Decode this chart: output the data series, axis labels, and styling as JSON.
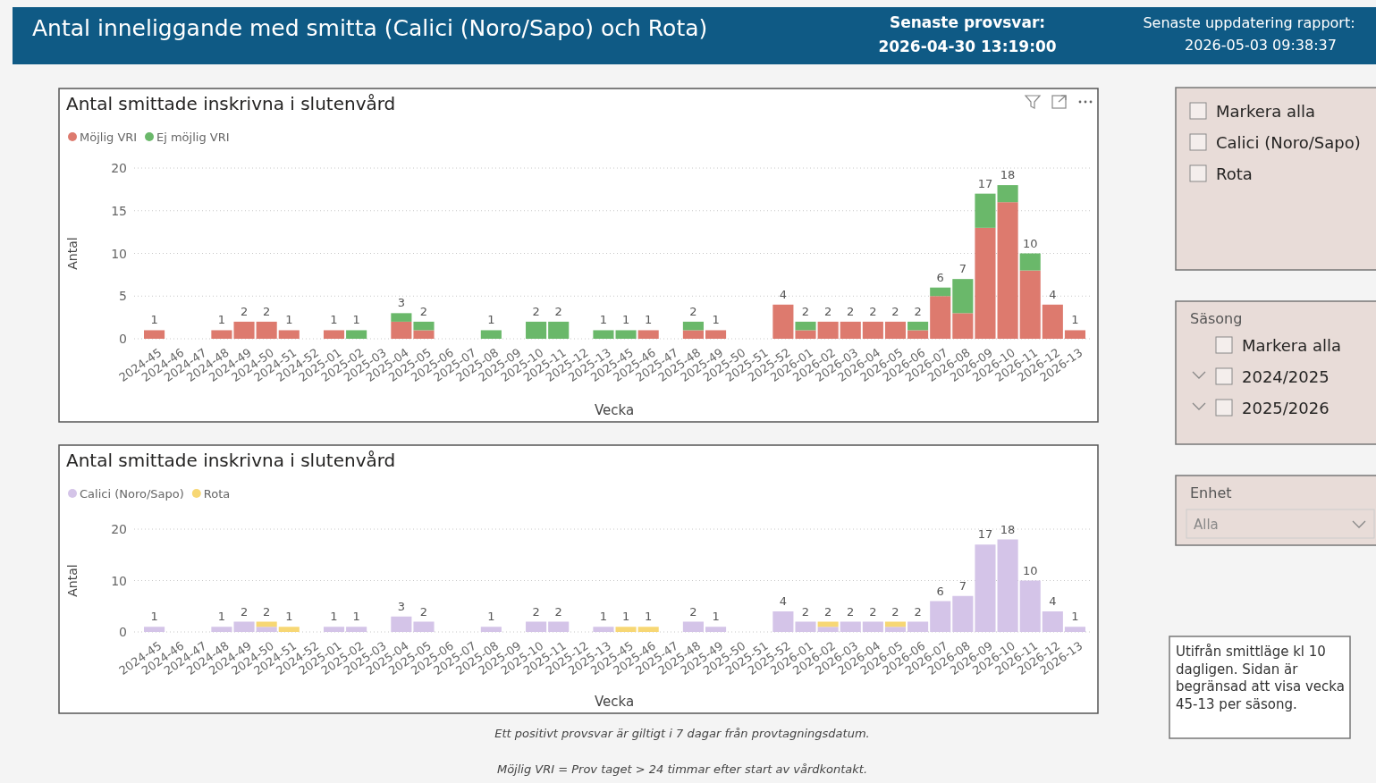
{
  "chart_data": [
    {
      "type": "bar",
      "title": "Antal smittade inskrivna i slutenvård",
      "xlabel": "Vecka",
      "ylabel": "Antal",
      "stacked": true,
      "grid": "y",
      "legend": "top left",
      "ylim": [
        0,
        20
      ],
      "yticks": [
        0,
        5,
        10,
        15,
        20
      ],
      "categories": [
        "2024-45",
        "2024-46",
        "2024-47",
        "2024-48",
        "2024-49",
        "2024-50",
        "2024-51",
        "2024-52",
        "2025-01",
        "2025-02",
        "2025-03",
        "2025-04",
        "2025-05",
        "2025-06",
        "2025-07",
        "2025-08",
        "2025-09",
        "2025-10",
        "2025-11",
        "2025-12",
        "2025-13",
        "2025-45",
        "2025-46",
        "2025-47",
        "2025-48",
        "2025-49",
        "2025-50",
        "2025-51",
        "2025-52",
        "2026-01",
        "2026-02",
        "2026-03",
        "2026-04",
        "2026-05",
        "2026-06",
        "2026-07",
        "2026-08",
        "2026-09",
        "2026-10",
        "2026-11",
        "2026-12",
        "2026-13"
      ],
      "series": [
        {
          "name": "Möjlig VRI",
          "color": "#dd7a6e",
          "values": [
            1,
            null,
            null,
            1,
            2,
            2,
            1,
            null,
            1,
            null,
            null,
            2,
            1,
            null,
            null,
            null,
            null,
            null,
            null,
            null,
            null,
            null,
            1,
            null,
            1,
            1,
            null,
            null,
            4,
            1,
            2,
            2,
            2,
            2,
            1,
            5,
            3,
            13,
            16,
            8,
            4,
            1
          ]
        },
        {
          "name": "Ej möjlig VRI",
          "color": "#6ab86a",
          "values": [
            null,
            null,
            null,
            null,
            null,
            null,
            null,
            null,
            null,
            1,
            null,
            1,
            1,
            null,
            null,
            1,
            null,
            2,
            2,
            null,
            1,
            1,
            null,
            null,
            1,
            null,
            null,
            null,
            null,
            1,
            null,
            null,
            null,
            null,
            1,
            1,
            4,
            4,
            2,
            2,
            null,
            null
          ]
        }
      ],
      "totals": [
        "1",
        null,
        null,
        "1",
        "2",
        "2",
        "1",
        null,
        "1",
        "1",
        null,
        "3",
        "2",
        null,
        null,
        "1",
        null,
        "2",
        "2",
        null,
        "1",
        "1",
        "1",
        null,
        "2",
        "1",
        null,
        null,
        "4",
        "2",
        "2",
        "2",
        "2",
        "2",
        "2",
        "6",
        "7",
        "17",
        "18",
        "10",
        "4",
        "1"
      ]
    },
    {
      "type": "bar",
      "title": "Antal smittade inskrivna i slutenvård",
      "xlabel": "Vecka",
      "ylabel": "Antal",
      "stacked": true,
      "grid": "y",
      "legend": "top left",
      "ylim": [
        0,
        20
      ],
      "yticks": [
        0,
        10,
        20
      ],
      "categories": [
        "2024-45",
        "2024-46",
        "2024-47",
        "2024-48",
        "2024-49",
        "2024-50",
        "2024-51",
        "2024-52",
        "2025-01",
        "2025-02",
        "2025-03",
        "2025-04",
        "2025-05",
        "2025-06",
        "2025-07",
        "2025-08",
        "2025-09",
        "2025-10",
        "2025-11",
        "2025-12",
        "2025-13",
        "2025-45",
        "2025-46",
        "2025-47",
        "2025-48",
        "2025-49",
        "2025-50",
        "2025-51",
        "2025-52",
        "2026-01",
        "2026-02",
        "2026-03",
        "2026-04",
        "2026-05",
        "2026-06",
        "2026-07",
        "2026-08",
        "2026-09",
        "2026-10",
        "2026-11",
        "2026-12",
        "2026-13"
      ],
      "series": [
        {
          "name": "Calici (Noro/Sapo)",
          "color": "#d4c4e8",
          "values": [
            1,
            null,
            null,
            1,
            2,
            1,
            null,
            null,
            1,
            1,
            null,
            3,
            2,
            null,
            null,
            1,
            null,
            2,
            2,
            null,
            1,
            null,
            null,
            null,
            2,
            1,
            null,
            null,
            4,
            2,
            1,
            2,
            2,
            1,
            2,
            6,
            7,
            17,
            18,
            10,
            4,
            1
          ]
        },
        {
          "name": "Rota",
          "color": "#f7d774",
          "values": [
            null,
            null,
            null,
            null,
            null,
            1,
            1,
            null,
            null,
            null,
            null,
            null,
            null,
            null,
            null,
            null,
            null,
            null,
            null,
            null,
            null,
            1,
            1,
            null,
            null,
            null,
            null,
            null,
            null,
            null,
            1,
            null,
            null,
            1,
            null,
            null,
            null,
            null,
            null,
            null,
            null,
            null
          ]
        }
      ],
      "totals": [
        "1",
        null,
        null,
        "1",
        "2",
        "2",
        "1",
        null,
        "1",
        "1",
        null,
        "3",
        "2",
        null,
        null,
        "1",
        null,
        "2",
        "2",
        null,
        "1",
        "1",
        "1",
        null,
        "2",
        "1",
        null,
        null,
        "4",
        "2",
        "2",
        "2",
        "2",
        "2",
        "2",
        "6",
        "7",
        "17",
        "18",
        "10",
        "4",
        "1"
      ],
      "annotations": [
        "Ett positivt provsvar är giltigt i 7 dagar från provtagningsdatum.",
        "Möjlig VRI = Prov taget > 24 timmar efter start av vårdkontakt."
      ]
    },
    {
      "type": "other",
      "title": "Antal inneliggande med smitta (Calici (Noro/Sapo) och Rota)",
      "annotations": [
        "Senaste provsvar:",
        "2026-04-30 13:19:00",
        "Senaste uppdatering rapport:",
        "2026-05-03 09:38:37",
        "Markera alla",
        "Calici (Noro/Sapo)",
        "Rota",
        "Säsong",
        "Markera alla",
        "2024/2025",
        "2025/2026",
        "Enhet",
        "Alla",
        "Utifrån smittläge kl 10 dagligen. Sidan är begränsad att visa vecka 45-13 per säsong."
      ]
    }
  ]
}
